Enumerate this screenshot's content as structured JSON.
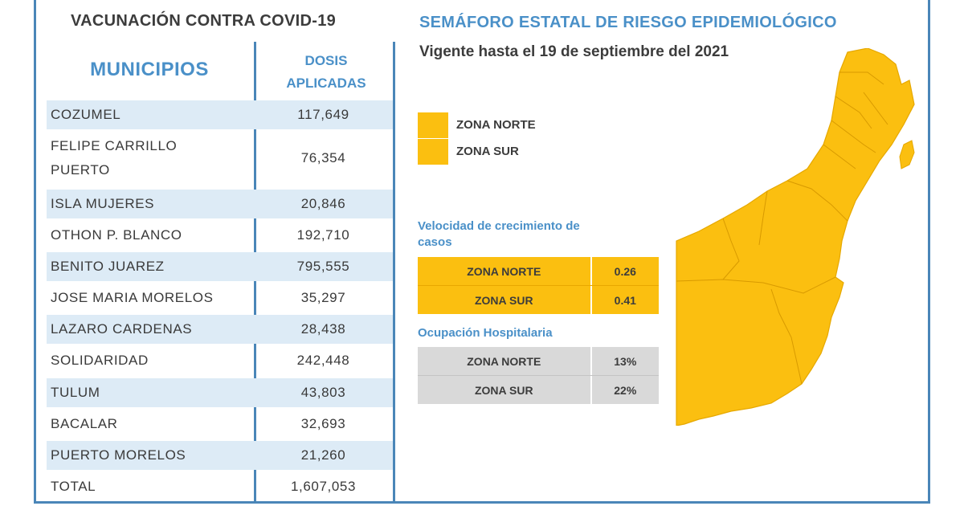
{
  "left": {
    "title": "VACUNACIÓN CONTRA COVID-19",
    "col_municipios": "MUNICIPIOS",
    "col_dosis_line1": "DOSIS",
    "col_dosis_line2": "APLICADAS",
    "rows": [
      {
        "name": "COZUMEL",
        "value": "117,649"
      },
      {
        "name": "FELIPE CARRILLO",
        "name2": "PUERTO",
        "value": "76,354"
      },
      {
        "name": "ISLA MUJERES",
        "value": "20,846"
      },
      {
        "name": "OTHON P. BLANCO",
        "value": "192,710"
      },
      {
        "name": "BENITO JUAREZ",
        "value": "795,555"
      },
      {
        "name": "JOSE MARIA MORELOS",
        "value": "35,297"
      },
      {
        "name": "LAZARO CARDENAS",
        "value": "28,438"
      },
      {
        "name": "SOLIDARIDAD",
        "value": "242,448"
      },
      {
        "name": "TULUM",
        "value": "43,803"
      },
      {
        "name": "BACALAR",
        "value": "32,693"
      },
      {
        "name": "PUERTO MORELOS",
        "value": "21,260"
      },
      {
        "name": "TOTAL",
        "value": "1,607,053"
      }
    ]
  },
  "right": {
    "title": "SEMÁFORO ESTATAL DE RIESGO EPIDEMIOLÓGICO",
    "subtitle": "Vigente hasta el 19 de septiembre del 2021",
    "legend": [
      {
        "label": "ZONA NORTE",
        "color": "#fbbf10"
      },
      {
        "label": "ZONA SUR",
        "color": "#fbbf10"
      }
    ],
    "velocidad": {
      "title_line1": "Velocidad de crecimiento de",
      "title_line2": "casos",
      "rows": [
        {
          "zone": "ZONA NORTE",
          "value": "0.26"
        },
        {
          "zone": "ZONA SUR",
          "value": "0.41"
        }
      ]
    },
    "ocupacion": {
      "title": "Ocupación Hospitalaria",
      "rows": [
        {
          "zone": "ZONA NORTE",
          "value": "13%"
        },
        {
          "zone": "ZONA SUR",
          "value": "22%"
        }
      ]
    }
  },
  "colors": {
    "accent_blue": "#4a90c8",
    "row_shade": "#ddebf6",
    "zone_yellow": "#fbbf10",
    "gray": "#d9d9d9"
  }
}
